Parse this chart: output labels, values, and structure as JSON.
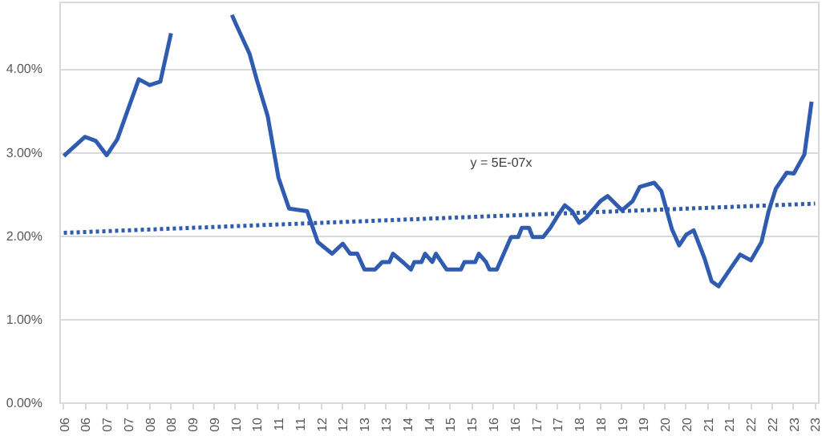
{
  "chart_data": {
    "type": "line",
    "ylim": [
      0,
      4.8
    ],
    "yticks": [
      {
        "value": 0,
        "label": "0.00%"
      },
      {
        "value": 1,
        "label": "1.00%"
      },
      {
        "value": 2,
        "label": "2.00%"
      },
      {
        "value": 3,
        "label": "3.00%"
      },
      {
        "value": 4,
        "label": "4.00%"
      }
    ],
    "xlim": [
      "2005-12",
      "2023-08"
    ],
    "xticks": [
      {
        "value": "2006-01",
        "label": "06"
      },
      {
        "value": "2006-07",
        "label": "06"
      },
      {
        "value": "2007-01",
        "label": "07"
      },
      {
        "value": "2007-07",
        "label": "07"
      },
      {
        "value": "2008-01",
        "label": "08"
      },
      {
        "value": "2008-07",
        "label": "08"
      },
      {
        "value": "2009-01",
        "label": "09"
      },
      {
        "value": "2009-07",
        "label": "09"
      },
      {
        "value": "2010-01",
        "label": "10"
      },
      {
        "value": "2010-07",
        "label": "10"
      },
      {
        "value": "2011-01",
        "label": "11"
      },
      {
        "value": "2011-07",
        "label": "11"
      },
      {
        "value": "2012-01",
        "label": "12"
      },
      {
        "value": "2012-07",
        "label": "12"
      },
      {
        "value": "2013-01",
        "label": "13"
      },
      {
        "value": "2013-07",
        "label": "13"
      },
      {
        "value": "2014-01",
        "label": "14"
      },
      {
        "value": "2014-07",
        "label": "14"
      },
      {
        "value": "2015-01",
        "label": "15"
      },
      {
        "value": "2015-07",
        "label": "15"
      },
      {
        "value": "2016-01",
        "label": "16"
      },
      {
        "value": "2016-07",
        "label": "16"
      },
      {
        "value": "2017-01",
        "label": "17"
      },
      {
        "value": "2017-07",
        "label": "17"
      },
      {
        "value": "2018-01",
        "label": "18"
      },
      {
        "value": "2018-07",
        "label": "18"
      },
      {
        "value": "2019-01",
        "label": "19"
      },
      {
        "value": "2019-07",
        "label": "19"
      },
      {
        "value": "2020-01",
        "label": "20"
      },
      {
        "value": "2020-07",
        "label": "20"
      },
      {
        "value": "2021-01",
        "label": "21"
      },
      {
        "value": "2021-07",
        "label": "21"
      },
      {
        "value": "2022-01",
        "label": "22"
      },
      {
        "value": "2022-07",
        "label": "22"
      },
      {
        "value": "2023-01",
        "label": "23"
      },
      {
        "value": "2023-07",
        "label": "23"
      }
    ],
    "grid": "y",
    "marker": "none",
    "annotations": [
      "y = 5E-07x"
    ],
    "series": [
      {
        "color": "#2f5cb0",
        "line_style": "solid",
        "x": [
          "2006-01",
          "2006-07",
          "2006-10",
          "2007-01",
          "2007-04",
          "2007-10",
          "2008-01",
          "2008-04",
          "2008-07",
          "2008-08",
          "2009-04",
          "2009-11",
          "2009-12",
          "2010-01",
          "2010-05",
          "2010-07",
          "2010-10",
          "2011-01",
          "2011-04",
          "2011-09",
          "2011-12",
          "2012-04",
          "2012-07",
          "2012-09",
          "2012-11",
          "2013-01",
          "2013-04",
          "2013-06",
          "2013-08",
          "2013-09",
          "2013-12",
          "2014-02",
          "2014-03",
          "2014-05",
          "2014-06",
          "2014-08",
          "2014-09",
          "2014-12",
          "2015-04",
          "2015-05",
          "2015-08",
          "2015-09",
          "2015-11",
          "2015-12",
          "2016-02",
          "2016-06",
          "2016-08",
          "2016-09",
          "2016-11",
          "2016-12",
          "2017-03",
          "2017-05",
          "2017-07",
          "2017-09",
          "2017-11",
          "2018-01",
          "2018-03",
          "2018-07",
          "2018-09",
          "2019-01",
          "2019-04",
          "2019-06",
          "2019-10",
          "2019-12",
          "2020-03",
          "2020-05",
          "2020-07",
          "2020-09",
          "2020-12",
          "2021-02",
          "2021-04",
          "2021-07",
          "2021-10",
          "2022-01",
          "2022-04",
          "2022-06",
          "2022-08",
          "2022-11",
          "2023-01",
          "2023-04",
          "2023-06"
        ],
        "values": [
          2.96,
          3.19,
          3.14,
          2.97,
          3.16,
          3.88,
          3.81,
          3.85,
          4.43,
          null,
          null,
          null,
          4.65,
          4.55,
          4.18,
          3.87,
          3.44,
          2.7,
          2.33,
          2.3,
          1.93,
          1.79,
          1.91,
          1.79,
          1.79,
          1.6,
          1.6,
          1.69,
          1.69,
          1.79,
          1.68,
          1.6,
          1.69,
          1.69,
          1.79,
          1.69,
          1.79,
          1.6,
          1.6,
          1.69,
          1.69,
          1.79,
          1.69,
          1.6,
          1.6,
          1.99,
          1.99,
          2.1,
          2.1,
          1.99,
          1.99,
          2.1,
          2.24,
          2.37,
          2.3,
          2.16,
          2.22,
          2.42,
          2.48,
          2.31,
          2.42,
          2.59,
          2.64,
          2.54,
          2.08,
          1.89,
          2.02,
          2.07,
          1.74,
          1.46,
          1.4,
          1.59,
          1.78,
          1.71,
          1.93,
          2.3,
          2.57,
          2.76,
          2.75,
          2.98,
          3.61
        ]
      },
      {
        "color": "#2f5cb0",
        "line_style": "dotted",
        "x": [
          "2006-01",
          "2023-07"
        ],
        "values": [
          2.04,
          2.39
        ]
      }
    ]
  }
}
